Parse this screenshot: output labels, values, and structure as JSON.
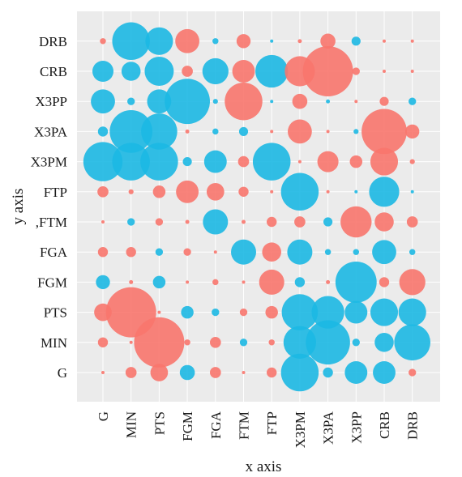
{
  "chart_data": {
    "type": "scatter",
    "variant": "correlation-bubble-matrix",
    "xlabel": "x axis",
    "ylabel": "y axis",
    "x_categories": [
      "G",
      "MIN",
      "PTS",
      "FGM",
      "FGA",
      "FTM",
      "FTP",
      "X3PM",
      "X3PA",
      "X3PP",
      "CRB",
      "DRB"
    ],
    "y_categories": [
      "G",
      "MIN",
      "PTS",
      "FGM",
      "FGA",
      "FTM",
      "FTP",
      "X3PM",
      "X3PA",
      "X3PP",
      "CRB",
      "DRB"
    ],
    "y_tick_labels": [
      "G",
      "MIN",
      "PTS",
      "FGM",
      "FGA",
      ",FTM",
      "FTP",
      "X3PM",
      "X3PA",
      "X3PP",
      "CRB",
      "DRB"
    ],
    "grid": true,
    "legend": "none",
    "colors": {
      "positive": "#1cb8e3",
      "negative": "#f8766d",
      "panel": "#ebebeb"
    },
    "notes": "Bubble size proportional to |value|; blue = positive, salmon = negative.",
    "rows": [
      {
        "y": "DRB",
        "values": [
          -0.12,
          0.75,
          0.55,
          -0.48,
          0.12,
          -0.28,
          0.05,
          -0.08,
          -0.3,
          0.18,
          -0.06,
          -0.05
        ]
      },
      {
        "y": "CRB",
        "values": [
          0.42,
          0.38,
          0.58,
          -0.22,
          0.52,
          -0.45,
          0.65,
          -0.6,
          -1.0,
          -0.15,
          -0.05,
          -0.05
        ]
      },
      {
        "y": "X3PP",
        "values": [
          0.48,
          0.15,
          0.48,
          0.9,
          0.1,
          -0.75,
          0.04,
          -0.3,
          0.08,
          -0.04,
          -0.18,
          0.15
        ]
      },
      {
        "y": "X3PA",
        "values": [
          0.2,
          0.85,
          0.72,
          -0.08,
          0.12,
          0.18,
          -0.04,
          -0.48,
          -0.04,
          0.1,
          -0.9,
          -0.28
        ]
      },
      {
        "y": "X3PM",
        "values": [
          0.78,
          0.75,
          0.75,
          0.18,
          0.45,
          -0.22,
          0.75,
          -0.06,
          -0.42,
          -0.25,
          -0.55,
          -0.1
        ]
      },
      {
        "y": "FTP",
        "values": [
          -0.22,
          -0.1,
          -0.25,
          -0.45,
          -0.35,
          -0.2,
          -0.05,
          0.75,
          -0.04,
          0.04,
          0.6,
          0.04
        ]
      },
      {
        "y": "FTM",
        "values": [
          -0.04,
          0.15,
          -0.15,
          -0.08,
          0.5,
          -0.08,
          -0.2,
          -0.22,
          0.18,
          -0.62,
          -0.38,
          -0.22
        ]
      },
      {
        "y": "FGA",
        "values": [
          -0.2,
          -0.2,
          0.15,
          -0.15,
          -0.04,
          0.5,
          -0.38,
          0.5,
          0.12,
          0.12,
          0.48,
          0.12
        ]
      },
      {
        "y": "FGM",
        "values": [
          0.28,
          -0.08,
          0.25,
          -0.06,
          -0.12,
          -0.06,
          -0.5,
          0.2,
          -0.08,
          0.82,
          -0.2,
          -0.52
        ]
      },
      {
        "y": "PTS",
        "values": [
          -0.35,
          -1.0,
          -0.04,
          0.25,
          0.15,
          -0.15,
          -0.25,
          0.72,
          0.65,
          0.45,
          0.55,
          0.55
        ]
      },
      {
        "y": "MIN",
        "values": [
          -0.2,
          -0.05,
          -1.0,
          -0.12,
          -0.22,
          0.15,
          -0.12,
          0.65,
          0.88,
          0.15,
          0.38,
          0.72
        ]
      },
      {
        "y": "G",
        "values": [
          -0.06,
          -0.22,
          -0.35,
          0.3,
          -0.22,
          -0.06,
          -0.2,
          0.75,
          0.2,
          0.45,
          0.45,
          -0.15
        ]
      }
    ]
  }
}
